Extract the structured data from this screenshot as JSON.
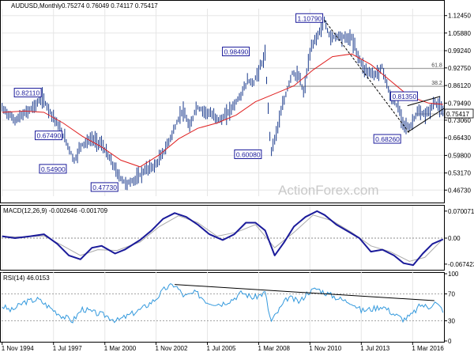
{
  "header": {
    "symbol": "AUDUSD,Monthly",
    "ohlc": "0.75274 0.76049 0.74117 0.75417"
  },
  "watermark": "ActionForex.com",
  "price_panel": {
    "y_ticks": [
      "1.12450",
      "1.05880",
      "0.99240",
      "0.92750",
      "0.86120",
      "0.79490",
      "0.73060",
      "0.66430",
      "0.59800",
      "0.53170",
      "0.46730"
    ],
    "current_label": "0.75417",
    "fib_labels": [
      "61.8",
      "38.2"
    ]
  },
  "macd_panel": {
    "title": "MACD(12,26,9) -0.002646 -0.001709",
    "y_ticks": [
      "0.070071",
      "0.00",
      "-0.067423"
    ]
  },
  "rsi_panel": {
    "title": "RSI(14) 46.0153",
    "y_ticks": [
      "100",
      "70",
      "30",
      "0"
    ]
  },
  "x_ticks": [
    "1 Nov 1994",
    "1 Jul 1997",
    "1 Mar 2000",
    "1 Nov 2002",
    "1 Jul 2005",
    "1 Mar 2008",
    "1 Nov 2010",
    "1 Jul 2013",
    "1 Mar 2016"
  ],
  "annotations": [
    {
      "text": "1.10790",
      "date": 2011.58,
      "value": 1.1079
    },
    {
      "text": "0.98490",
      "date": 2008.5,
      "value": 0.9849
    },
    {
      "text": "0.82110",
      "date": 1996.9,
      "value": 0.8211
    },
    {
      "text": "0.81350",
      "date": 2016.3,
      "value": 0.8135
    },
    {
      "text": "0.67490",
      "date": 1998.6,
      "value": 0.6749
    },
    {
      "text": "0.68260",
      "date": 2016.0,
      "value": 0.6826
    },
    {
      "text": "0.60080",
      "date": 2008.8,
      "value": 0.6008
    },
    {
      "text": "0.54900",
      "date": 1998.7,
      "value": 0.549
    },
    {
      "text": "0.47730",
      "date": 2001.3,
      "value": 0.4773
    }
  ],
  "colors": {
    "bars": "#1a3a8c",
    "ma": "#e02020",
    "macd": "#1a1a9a",
    "signal": "#aaaaaa",
    "rsi": "#3399dd",
    "grid": "#e6e6e6",
    "level_line": "#999999",
    "trendline": "#000000"
  },
  "chart_data": [
    {
      "type": "line",
      "panel": "price",
      "ylim": [
        0.4473,
        1.1445
      ],
      "xlim": [
        1994.8,
        2017.8
      ],
      "series": [
        {
          "name": "AUDUSD",
          "points": [
            [
              1994.83,
              0.775
            ],
            [
              1995.0,
              0.765
            ],
            [
              1995.5,
              0.73
            ],
            [
              1996.0,
              0.755
            ],
            [
              1996.6,
              0.79
            ],
            [
              1996.9,
              0.815
            ],
            [
              1997.2,
              0.78
            ],
            [
              1997.6,
              0.73
            ],
            [
              1998.1,
              0.66
            ],
            [
              1998.6,
              0.575
            ],
            [
              1998.9,
              0.635
            ],
            [
              1999.5,
              0.66
            ],
            [
              2000.0,
              0.64
            ],
            [
              2000.5,
              0.575
            ],
            [
              2000.9,
              0.52
            ],
            [
              2001.3,
              0.49
            ],
            [
              2001.8,
              0.51
            ],
            [
              2002.3,
              0.545
            ],
            [
              2002.8,
              0.56
            ],
            [
              2003.3,
              0.62
            ],
            [
              2003.8,
              0.7
            ],
            [
              2004.2,
              0.77
            ],
            [
              2004.6,
              0.7
            ],
            [
              2004.9,
              0.78
            ],
            [
              2005.5,
              0.76
            ],
            [
              2006.2,
              0.73
            ],
            [
              2006.7,
              0.77
            ],
            [
              2007.2,
              0.82
            ],
            [
              2007.6,
              0.88
            ],
            [
              2007.9,
              0.87
            ],
            [
              2008.5,
              0.975
            ],
            [
              2008.8,
              0.61
            ],
            [
              2009.0,
              0.66
            ],
            [
              2009.4,
              0.78
            ],
            [
              2009.9,
              0.91
            ],
            [
              2010.3,
              0.89
            ],
            [
              2010.5,
              0.83
            ],
            [
              2010.8,
              0.97
            ],
            [
              2011.0,
              1.02
            ],
            [
              2011.3,
              1.06
            ],
            [
              2011.58,
              1.105
            ],
            [
              2011.9,
              1.04
            ],
            [
              2012.3,
              1.05
            ],
            [
              2012.7,
              1.04
            ],
            [
              2013.0,
              1.04
            ],
            [
              2013.4,
              0.96
            ],
            [
              2013.7,
              0.92
            ],
            [
              2014.2,
              0.9
            ],
            [
              2014.6,
              0.93
            ],
            [
              2015.0,
              0.82
            ],
            [
              2015.4,
              0.78
            ],
            [
              2015.7,
              0.72
            ],
            [
              2016.0,
              0.7
            ],
            [
              2016.4,
              0.76
            ],
            [
              2016.8,
              0.75
            ],
            [
              2017.1,
              0.77
            ],
            [
              2017.3,
              0.8
            ],
            [
              2017.6,
              0.78
            ],
            [
              2017.75,
              0.754
            ]
          ]
        },
        {
          "name": "moving-average",
          "points": [
            [
              1994.83,
              0.76
            ],
            [
              1996.0,
              0.765
            ],
            [
              1997.0,
              0.76
            ],
            [
              1998.0,
              0.72
            ],
            [
              1999.0,
              0.67
            ],
            [
              2000.0,
              0.63
            ],
            [
              2001.0,
              0.58
            ],
            [
              2002.0,
              0.555
            ],
            [
              2003.0,
              0.6
            ],
            [
              2004.0,
              0.66
            ],
            [
              2005.0,
              0.7
            ],
            [
              2006.0,
              0.72
            ],
            [
              2007.0,
              0.75
            ],
            [
              2008.0,
              0.8
            ],
            [
              2009.0,
              0.83
            ],
            [
              2010.0,
              0.86
            ],
            [
              2011.0,
              0.92
            ],
            [
              2012.0,
              0.97
            ],
            [
              2013.0,
              0.98
            ],
            [
              2014.0,
              0.94
            ],
            [
              2015.0,
              0.88
            ],
            [
              2016.0,
              0.82
            ],
            [
              2017.0,
              0.795
            ],
            [
              2017.75,
              0.79
            ]
          ]
        }
      ],
      "levels": [
        {
          "label": "61.8",
          "value": 0.925
        },
        {
          "label": "38.2",
          "value": 0.858
        },
        {
          "label": "0.75417",
          "value": 0.75417
        }
      ],
      "trendlines": [
        [
          [
            2011.58,
            1.1079
          ],
          [
            2016.0,
            0.6826
          ]
        ],
        [
          [
            2015.9,
            0.685
          ],
          [
            2017.8,
            0.775
          ]
        ],
        [
          [
            2015.9,
            0.785
          ],
          [
            2017.6,
            0.82
          ]
        ]
      ]
    },
    {
      "type": "line",
      "panel": "macd",
      "title": "MACD(12,26,9) -0.002646 -0.001709",
      "ylim": [
        -0.08,
        0.08
      ],
      "series": [
        {
          "name": "macd",
          "points": [
            [
              1994.83,
              0.005
            ],
            [
              1995.5,
              0.0
            ],
            [
              1996.3,
              0.005
            ],
            [
              1997.0,
              0.01
            ],
            [
              1997.7,
              -0.015
            ],
            [
              1998.3,
              -0.045
            ],
            [
              1998.9,
              -0.055
            ],
            [
              1999.5,
              -0.025
            ],
            [
              2000.0,
              -0.02
            ],
            [
              2000.7,
              -0.04
            ],
            [
              2001.2,
              -0.03
            ],
            [
              2002.0,
              -0.005
            ],
            [
              2002.6,
              0.02
            ],
            [
              2003.2,
              0.05
            ],
            [
              2003.8,
              0.065
            ],
            [
              2004.4,
              0.055
            ],
            [
              2005.0,
              0.035
            ],
            [
              2005.6,
              0.01
            ],
            [
              2006.3,
              -0.005
            ],
            [
              2006.9,
              0.01
            ],
            [
              2007.5,
              0.04
            ],
            [
              2008.0,
              0.04
            ],
            [
              2008.5,
              0.02
            ],
            [
              2009.0,
              -0.045
            ],
            [
              2009.5,
              -0.01
            ],
            [
              2010.0,
              0.03
            ],
            [
              2010.6,
              0.055
            ],
            [
              2011.2,
              0.07
            ],
            [
              2011.6,
              0.06
            ],
            [
              2012.2,
              0.035
            ],
            [
              2012.9,
              0.015
            ],
            [
              2013.4,
              0.0
            ],
            [
              2014.0,
              -0.035
            ],
            [
              2014.6,
              -0.03
            ],
            [
              2015.2,
              -0.045
            ],
            [
              2015.7,
              -0.065
            ],
            [
              2016.2,
              -0.07
            ],
            [
              2016.7,
              -0.04
            ],
            [
              2017.2,
              -0.015
            ],
            [
              2017.75,
              -0.003
            ]
          ]
        },
        {
          "name": "signal",
          "points": [
            [
              1994.83,
              0.004
            ],
            [
              1996.0,
              0.003
            ],
            [
              1997.0,
              0.006
            ],
            [
              1998.0,
              -0.02
            ],
            [
              1998.9,
              -0.045
            ],
            [
              1999.8,
              -0.03
            ],
            [
              2000.8,
              -0.032
            ],
            [
              2002.0,
              -0.01
            ],
            [
              2003.0,
              0.03
            ],
            [
              2004.0,
              0.058
            ],
            [
              2005.0,
              0.04
            ],
            [
              2006.0,
              0.005
            ],
            [
              2007.0,
              0.015
            ],
            [
              2008.0,
              0.035
            ],
            [
              2009.0,
              -0.025
            ],
            [
              2010.0,
              0.015
            ],
            [
              2011.0,
              0.06
            ],
            [
              2012.0,
              0.045
            ],
            [
              2013.0,
              0.015
            ],
            [
              2014.0,
              -0.02
            ],
            [
              2015.0,
              -0.035
            ],
            [
              2016.0,
              -0.06
            ],
            [
              2016.8,
              -0.05
            ],
            [
              2017.75,
              -0.002
            ]
          ]
        }
      ]
    },
    {
      "type": "line",
      "panel": "rsi",
      "title": "RSI(14) 46.0153",
      "ylim": [
        0,
        100
      ],
      "series": [
        {
          "name": "rsi",
          "points": [
            [
              1994.83,
              52
            ],
            [
              1995.3,
              45
            ],
            [
              1996.0,
              58
            ],
            [
              1996.7,
              62
            ],
            [
              1997.3,
              50
            ],
            [
              1997.9,
              38
            ],
            [
              1998.5,
              30
            ],
            [
              1999.0,
              48
            ],
            [
              1999.6,
              42
            ],
            [
              2000.2,
              38
            ],
            [
              2000.8,
              30
            ],
            [
              2001.4,
              38
            ],
            [
              2002.1,
              48
            ],
            [
              2002.8,
              62
            ],
            [
              2003.3,
              78
            ],
            [
              2003.8,
              84
            ],
            [
              2004.3,
              66
            ],
            [
              2004.9,
              72
            ],
            [
              2005.5,
              58
            ],
            [
              2006.2,
              55
            ],
            [
              2006.8,
              62
            ],
            [
              2007.3,
              72
            ],
            [
              2007.9,
              64
            ],
            [
              2008.5,
              72
            ],
            [
              2008.8,
              28
            ],
            [
              2009.2,
              45
            ],
            [
              2009.7,
              65
            ],
            [
              2010.3,
              58
            ],
            [
              2010.7,
              72
            ],
            [
              2011.2,
              78
            ],
            [
              2011.6,
              72
            ],
            [
              2012.1,
              66
            ],
            [
              2012.6,
              60
            ],
            [
              2013.0,
              58
            ],
            [
              2013.5,
              45
            ],
            [
              2014.1,
              48
            ],
            [
              2014.6,
              52
            ],
            [
              2015.2,
              40
            ],
            [
              2015.7,
              32
            ],
            [
              2016.1,
              38
            ],
            [
              2016.6,
              54
            ],
            [
              2017.0,
              50
            ],
            [
              2017.3,
              58
            ],
            [
              2017.75,
              46
            ]
          ]
        }
      ],
      "levels": [
        70,
        30
      ],
      "trendlines": [
        [
          [
            2003.8,
            84
          ],
          [
            2017.3,
            60
          ]
        ]
      ]
    }
  ]
}
